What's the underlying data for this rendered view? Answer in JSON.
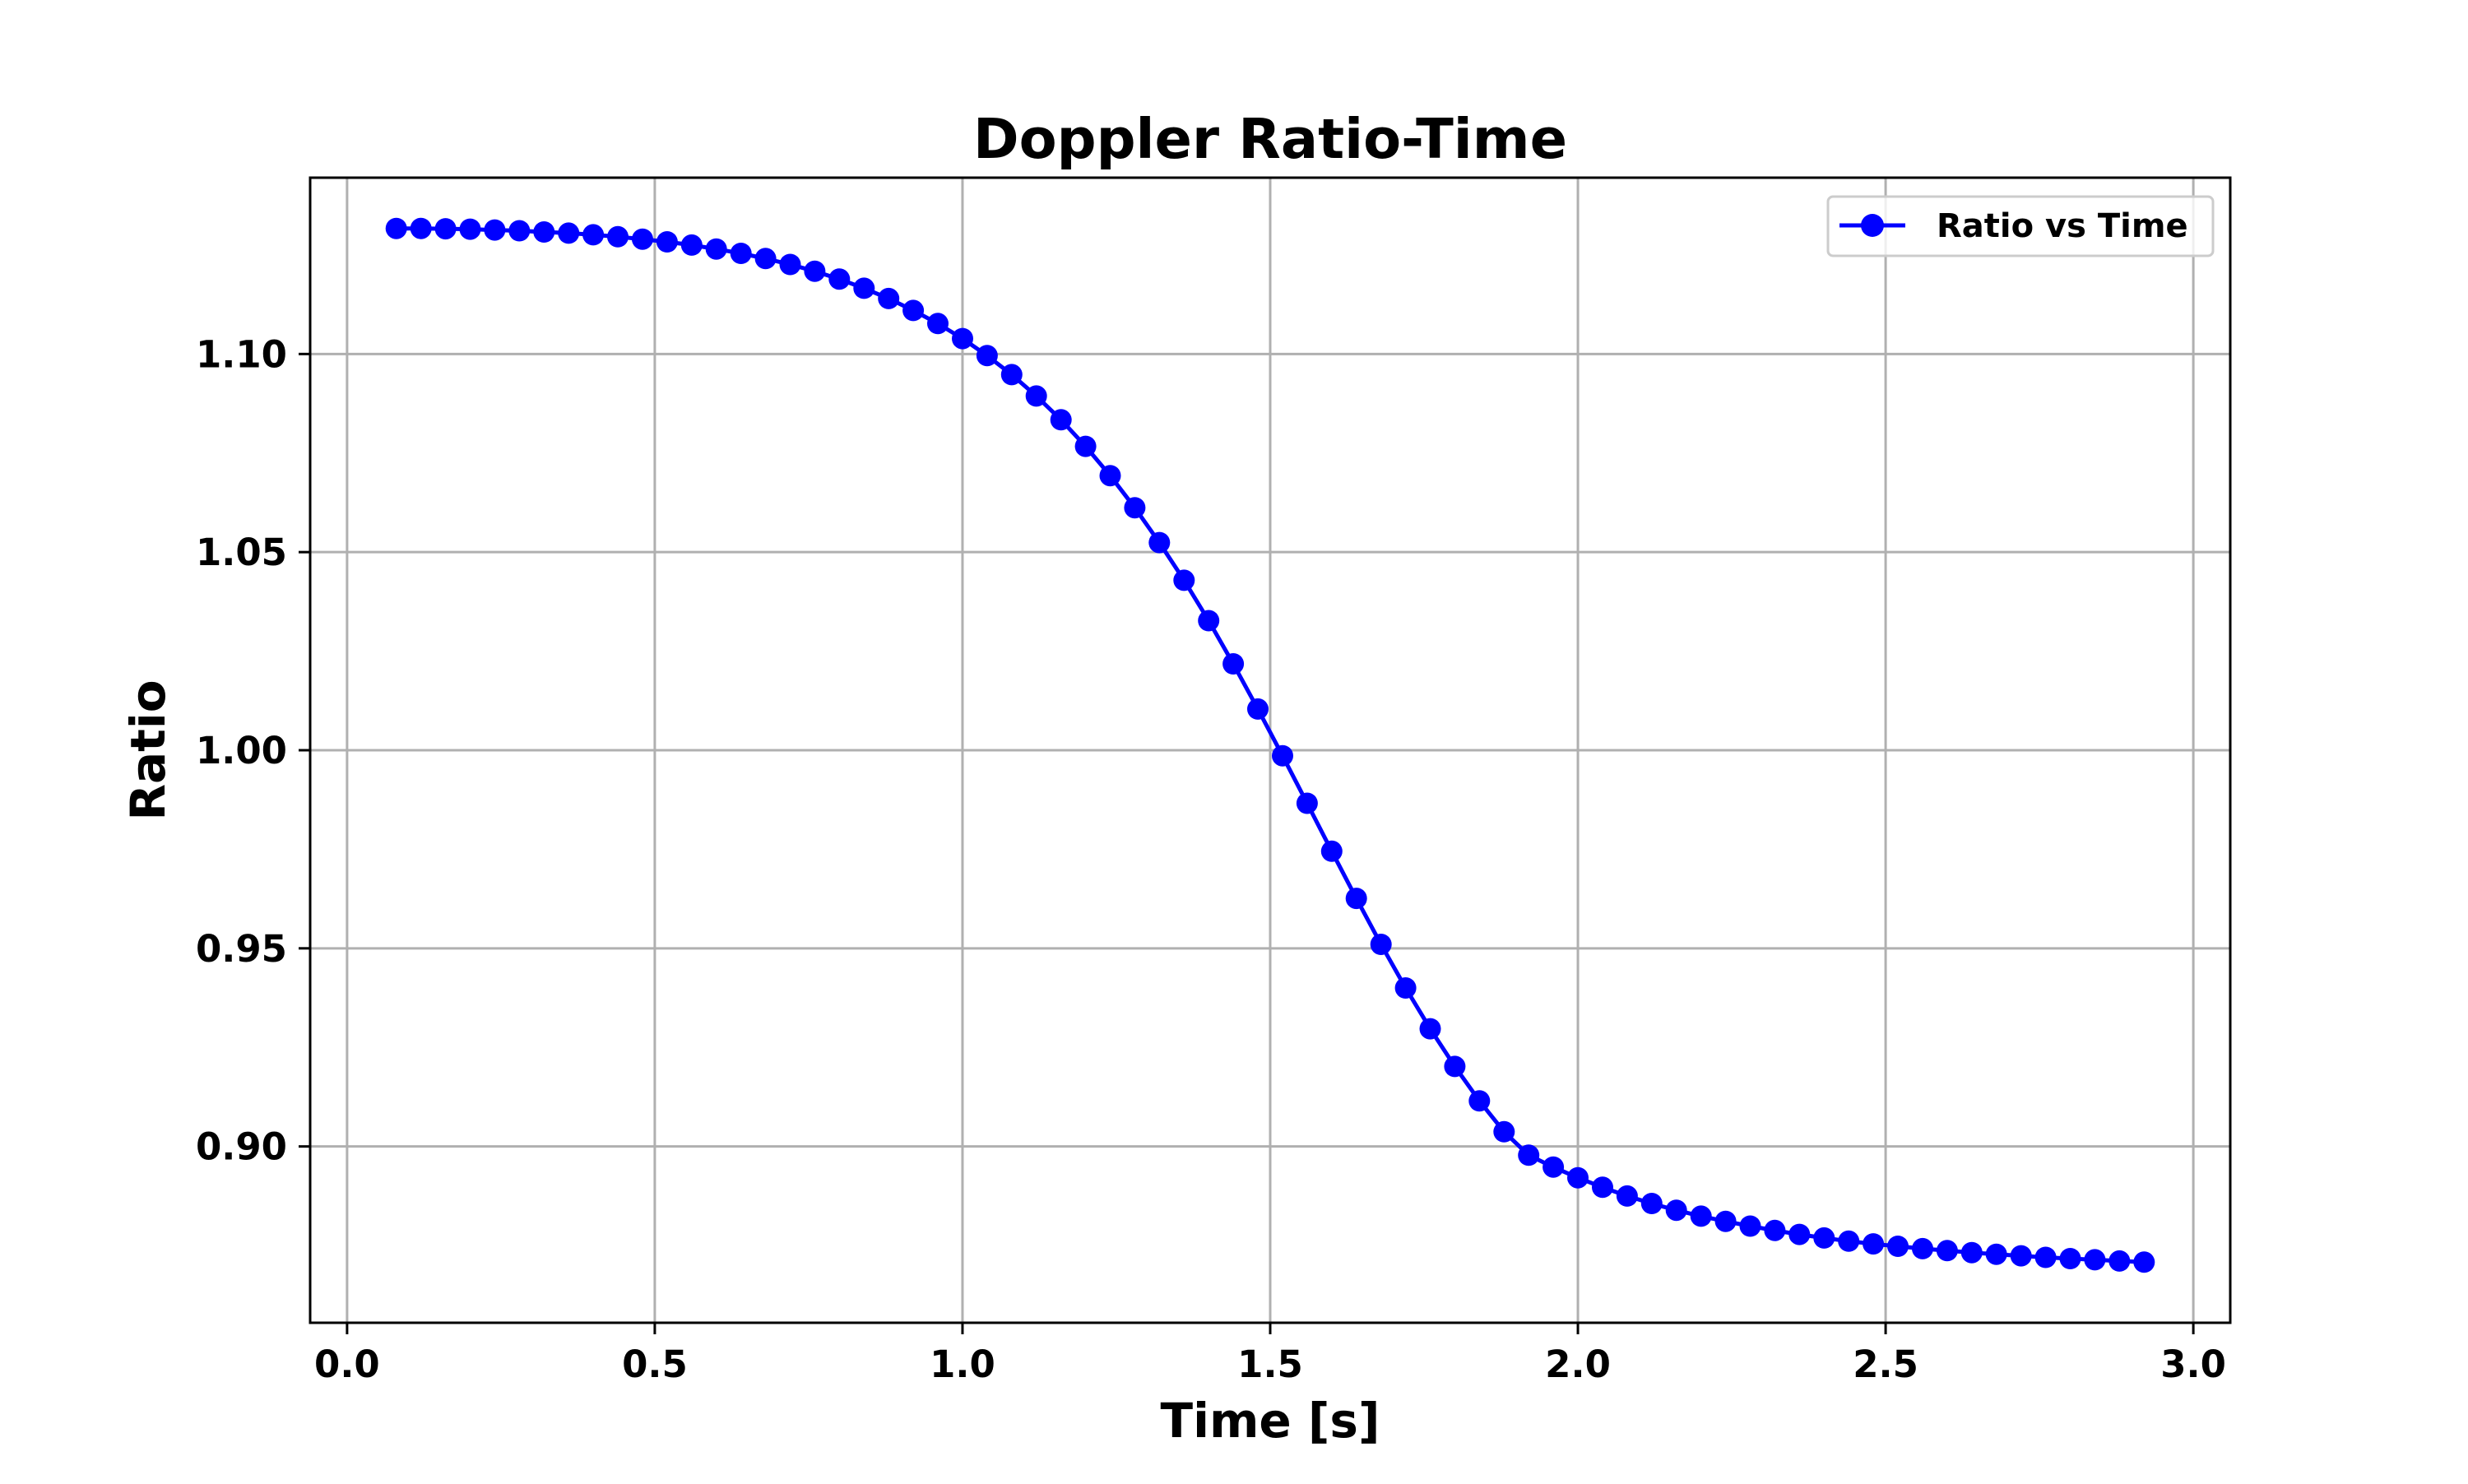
{
  "chart_data": {
    "type": "line",
    "title": "Doppler Ratio-Time",
    "xlabel": "Time [s]",
    "ylabel": "Ratio",
    "xlim": [
      -0.06,
      3.06
    ],
    "ylim": [
      0.8555,
      1.1445
    ],
    "xticks": [
      0.0,
      0.5,
      1.0,
      1.5,
      2.0,
      2.5,
      3.0
    ],
    "xtick_labels": [
      "0.0",
      "0.5",
      "1.0",
      "1.5",
      "2.0",
      "2.5",
      "3.0"
    ],
    "yticks": [
      0.9,
      0.95,
      1.0,
      1.05,
      1.1
    ],
    "ytick_labels": [
      "0.90",
      "0.95",
      "1.00",
      "1.05",
      "1.10"
    ],
    "grid": true,
    "legend_position": "top-right",
    "series": [
      {
        "name": "Ratio vs Time",
        "color": "#0000ff",
        "marker": "circle",
        "x": [
          0.08,
          0.12,
          0.16,
          0.2,
          0.24,
          0.28,
          0.32,
          0.36,
          0.4,
          0.44,
          0.48,
          0.52,
          0.56,
          0.6,
          0.64,
          0.68,
          0.72,
          0.76,
          0.8,
          0.84,
          0.88,
          0.92,
          0.96,
          1.0,
          1.04,
          1.08,
          1.12,
          1.16,
          1.2,
          1.24,
          1.28,
          1.32,
          1.36,
          1.4,
          1.44,
          1.48,
          1.52,
          1.56,
          1.6,
          1.64,
          1.68,
          1.72,
          1.76,
          1.8,
          1.84,
          1.88,
          1.92,
          1.96,
          2.0,
          2.04,
          2.08,
          2.12,
          2.16,
          2.2,
          2.24,
          2.28,
          2.32,
          2.36,
          2.4,
          2.44,
          2.48,
          2.52,
          2.56,
          2.6,
          2.64,
          2.68,
          2.72,
          2.76,
          2.8,
          2.84,
          2.88,
          2.92
        ],
        "y": [
          1.1317,
          1.1317,
          1.1316,
          1.1315,
          1.1313,
          1.1311,
          1.1308,
          1.1305,
          1.1301,
          1.1296,
          1.129,
          1.1283,
          1.1275,
          1.1265,
          1.1254,
          1.1241,
          1.1226,
          1.1209,
          1.1189,
          1.1166,
          1.114,
          1.111,
          1.1077,
          1.1039,
          1.0996,
          1.0948,
          1.0894,
          1.0834,
          1.0767,
          1.0693,
          1.0612,
          1.0524,
          1.0429,
          1.0327,
          1.0218,
          1.0104,
          0.9986,
          0.9866,
          0.9745,
          0.9626,
          0.951,
          0.94,
          0.9297,
          0.9202,
          0.9115,
          0.9037,
          0.8978,
          0.8948,
          0.8921,
          0.8897,
          0.8875,
          0.8856,
          0.8839,
          0.8824,
          0.8811,
          0.8799,
          0.8788,
          0.8778,
          0.8769,
          0.8761,
          0.8754,
          0.8748,
          0.8742,
          0.8737,
          0.8732,
          0.8728,
          0.8724,
          0.872,
          0.8717,
          0.8714,
          0.8711,
          0.8708
        ]
      }
    ]
  }
}
